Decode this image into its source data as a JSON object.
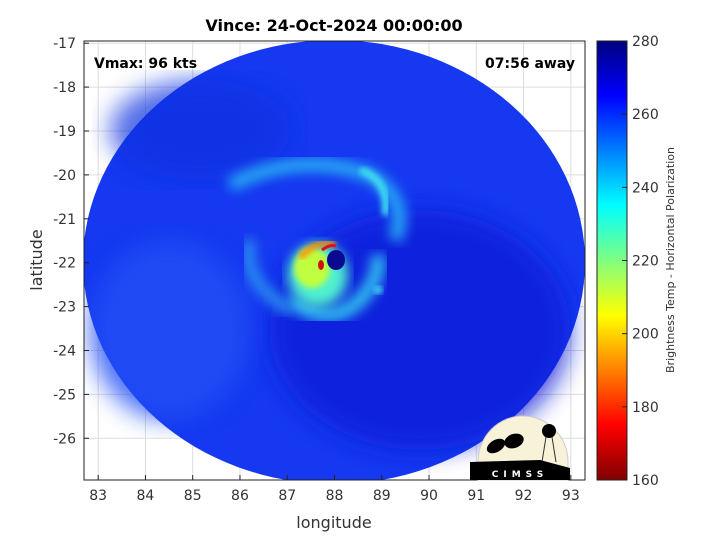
{
  "chart_data": {
    "type": "heatmap",
    "title": "Vince: 24-Oct-2024 00:00:00",
    "xlabel": "longitude",
    "ylabel": "latitude",
    "xlim": [
      82.7,
      93.3
    ],
    "ylim": [
      -26.95,
      -16.95
    ],
    "xticks": [
      83,
      84,
      85,
      86,
      87,
      88,
      89,
      90,
      91,
      92,
      93
    ],
    "yticks": [
      -17,
      -18,
      -19,
      -20,
      -21,
      -22,
      -23,
      -24,
      -25,
      -26
    ],
    "grid": true,
    "annotations": {
      "vmax": "Vmax: 96 kts",
      "time_away": "07:56 away"
    },
    "colorbar": {
      "label": "Brightness Temp - Horizontal Polarization",
      "range": [
        160,
        280
      ],
      "ticks": [
        160,
        180,
        200,
        220,
        240,
        260,
        280
      ],
      "colormap": "jet",
      "colors": [
        "#800000",
        "#ff0000",
        "#ffff00",
        "#00ffff",
        "#0000ff",
        "#000080"
      ]
    },
    "storm_center": {
      "lon": 88.2,
      "lat": -22.0
    },
    "logo": "CIMSS"
  }
}
